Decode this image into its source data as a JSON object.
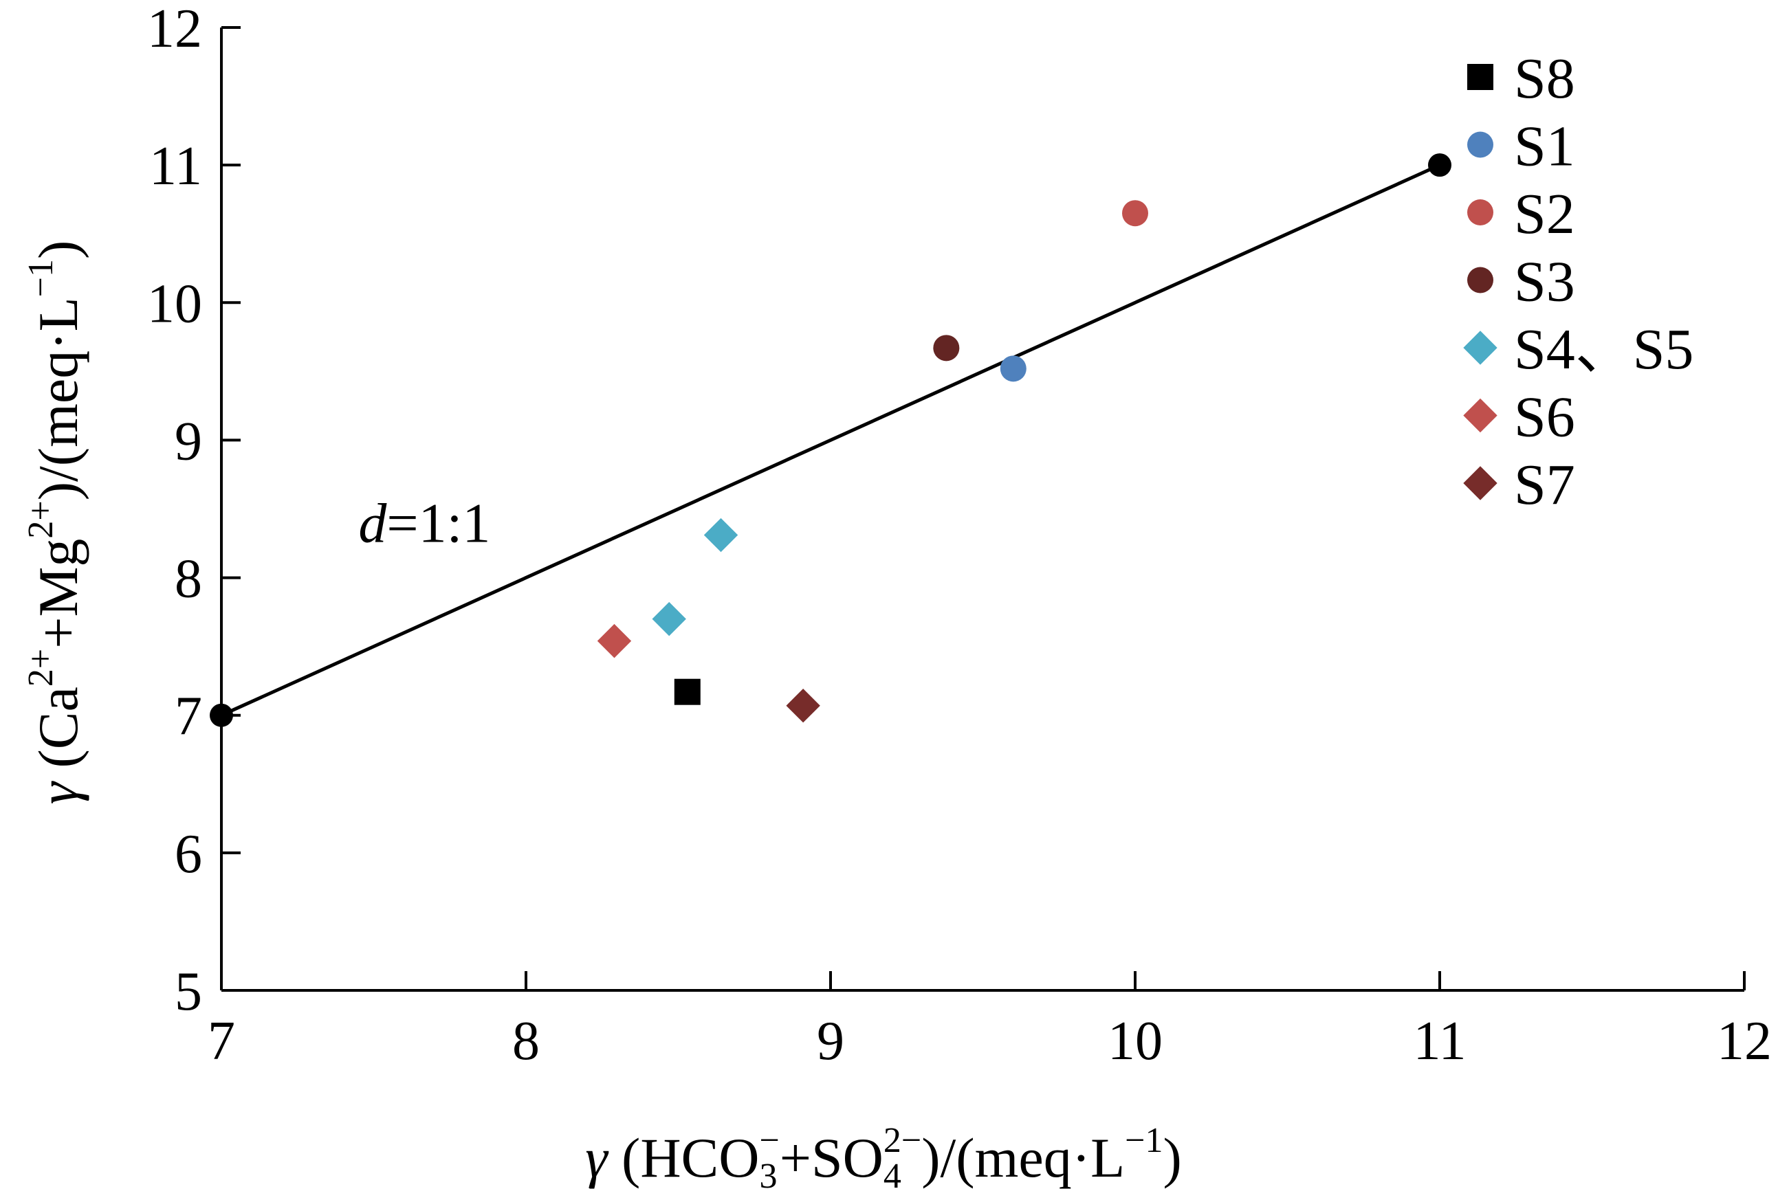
{
  "chart_data": {
    "type": "scatter",
    "xlabel": "γ (HCO₃⁻+SO₄²⁻)/(meq·L⁻¹)",
    "ylabel": "γ (Ca²⁺+Mg²⁺)/(meq·L⁻¹)",
    "xlim": [
      7,
      12
    ],
    "ylim": [
      5,
      12
    ],
    "x_ticks": [
      "7",
      "8",
      "9",
      "10",
      "11",
      "12"
    ],
    "y_ticks": [
      "5",
      "6",
      "7",
      "8",
      "9",
      "10",
      "11",
      "12"
    ],
    "grid": false,
    "legend_position": "right",
    "reference_line": {
      "label_italic": "d",
      "label_rest": "=1:1",
      "points": [
        [
          7,
          7
        ],
        [
          11,
          11
        ]
      ]
    },
    "series": [
      {
        "name": "S8",
        "marker": "square",
        "color": "#000000",
        "points": [
          [
            8.53,
            7.17
          ]
        ]
      },
      {
        "name": "S1",
        "marker": "circle",
        "color": "#4f81bd",
        "points": [
          [
            9.6,
            9.52
          ]
        ]
      },
      {
        "name": "S2",
        "marker": "circle",
        "color": "#c0504d",
        "points": [
          [
            10.0,
            10.65
          ]
        ]
      },
      {
        "name": "S3",
        "marker": "circle",
        "color": "#632523",
        "points": [
          [
            9.38,
            9.67
          ]
        ]
      },
      {
        "name": "S4、S5",
        "marker": "diamond",
        "color": "#4bacc6",
        "points": [
          [
            8.64,
            8.31
          ],
          [
            8.47,
            7.7
          ]
        ]
      },
      {
        "name": "S6",
        "marker": "diamond",
        "color": "#c0504d",
        "points": [
          [
            8.29,
            7.54
          ]
        ]
      },
      {
        "name": "S7",
        "marker": "diamond",
        "color": "#772c2a",
        "points": [
          [
            8.91,
            7.07
          ]
        ]
      }
    ]
  }
}
